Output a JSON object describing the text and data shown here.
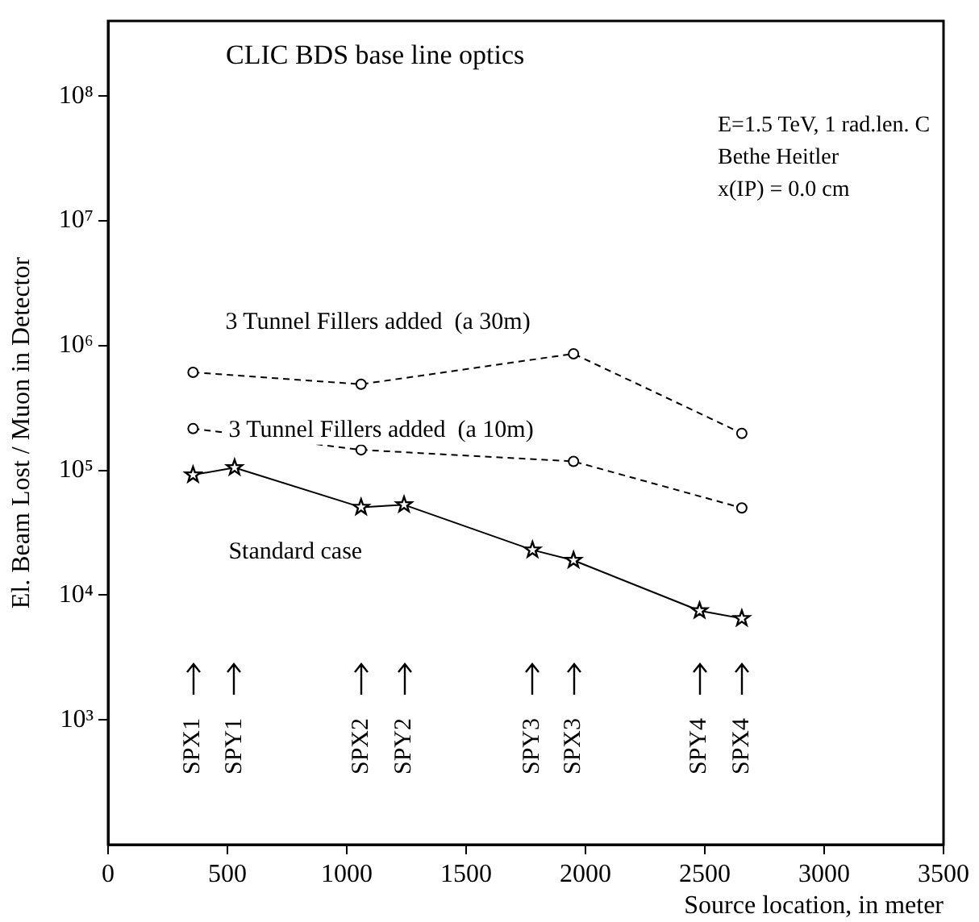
{
  "chart_data": {
    "type": "line",
    "title": "CLIC BDS base line optics",
    "xlabel": "Source location, in meter",
    "ylabel": "El. Beam Lost / Muon in Detector",
    "log": "y",
    "grid": false,
    "legend": false,
    "xlim": [
      0,
      3500
    ],
    "xticks": [
      0,
      500,
      1000,
      1500,
      2000,
      2500,
      3000,
      3500
    ],
    "ylim": [
      100,
      400000000
    ],
    "yticks": [
      {
        "value": 1000,
        "label": "10³"
      },
      {
        "value": 10000,
        "label": "10⁴"
      },
      {
        "value": 100000,
        "label": "10⁵"
      },
      {
        "value": 1000000,
        "label": "10⁶"
      },
      {
        "value": 10000000,
        "label": "10⁷"
      },
      {
        "value": 100000000,
        "label": "10⁸"
      }
    ],
    "series": [
      {
        "name": "3 Tunnel Fillers added  (a 30m)",
        "color": "#000000",
        "marker": "circle",
        "line_style": "dashed",
        "x": [
          356,
          1060,
          1950,
          2655
        ],
        "values": [
          610000,
          490000,
          860000,
          198000
        ]
      },
      {
        "name": "3 Tunnel Fillers added  (a 10m)",
        "color": "#000000",
        "marker": "circle",
        "line_style": "dashed",
        "x": [
          356,
          1060,
          1950,
          2655
        ],
        "values": [
          216000,
          146000,
          118000,
          50000
        ]
      },
      {
        "name": "Standard case",
        "color": "#000000",
        "marker": "star",
        "line_style": "solid",
        "x": [
          356,
          530,
          1060,
          1240,
          1778,
          1950,
          2478,
          2655
        ],
        "values": [
          92000,
          105000,
          50600,
          53000,
          23000,
          19000,
          7500,
          6500
        ]
      }
    ],
    "annotations": [
      "E=1.5 TeV, 1 rad.len. C",
      "Bethe Heitler",
      "x(IP) = 0.0 cm",
      "SPX1",
      "SPY1",
      "SPX2",
      "SPY2",
      "SPY3",
      "SPX3",
      "SPY4",
      "SPX4"
    ]
  }
}
